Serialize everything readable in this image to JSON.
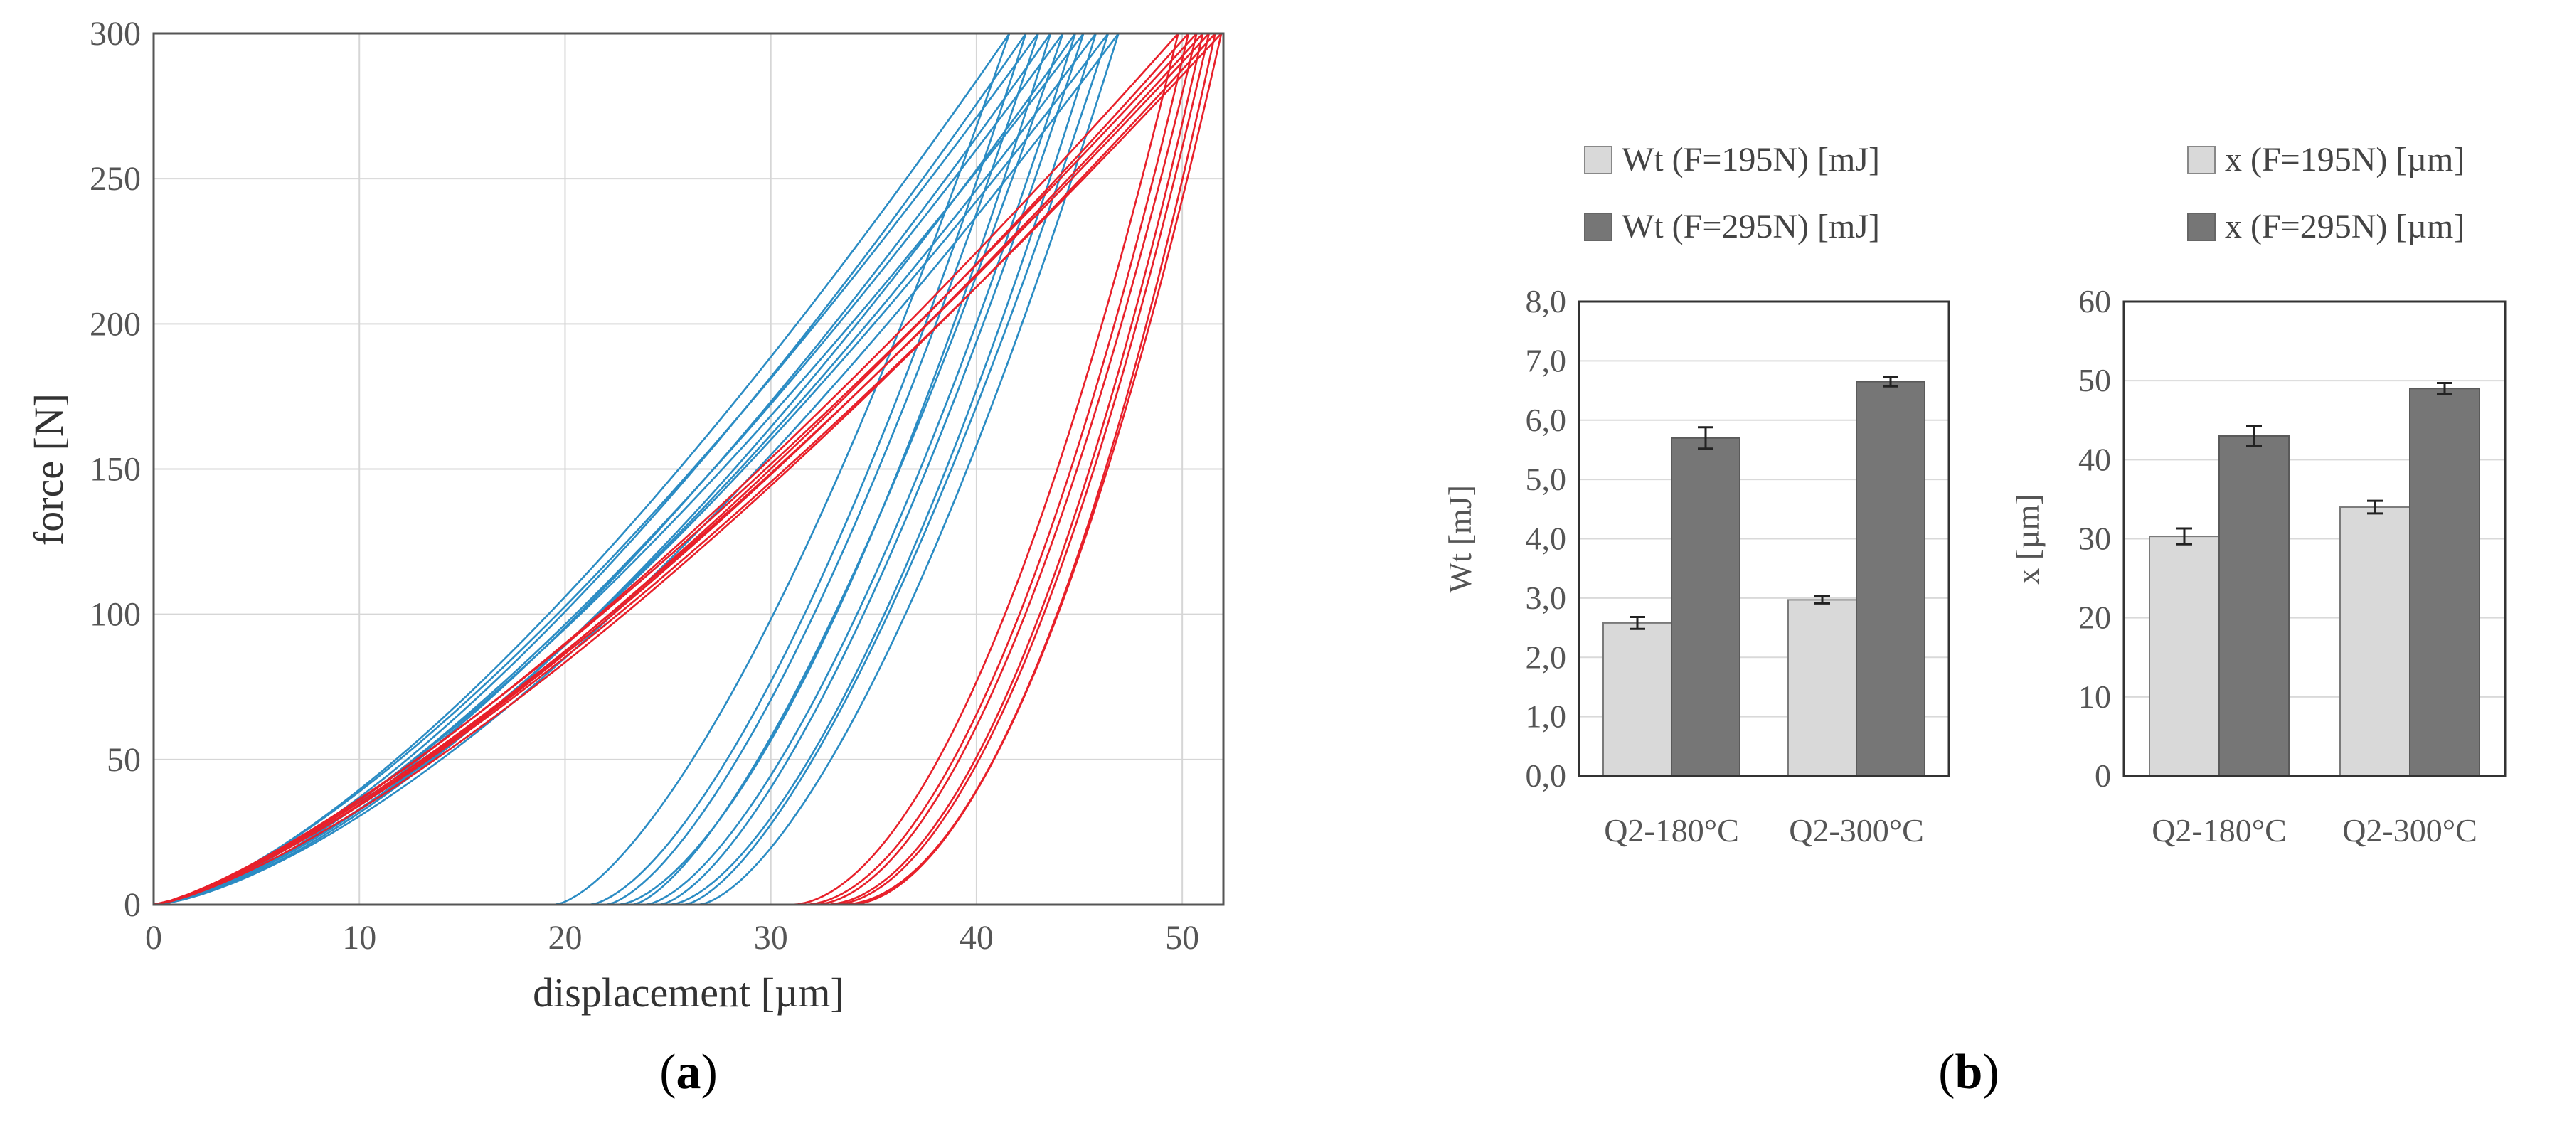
{
  "panel_labels": {
    "a": {
      "open": "(",
      "letter": "a",
      "close": ")"
    },
    "b": {
      "open": "(",
      "letter": "b",
      "close": ")"
    }
  },
  "chart_data": [
    {
      "type": "line",
      "panel": "a",
      "xlabel": "displacement [µm]",
      "ylabel": "force [N]",
      "xlim": [
        0,
        52
      ],
      "ylim": [
        0,
        300
      ],
      "xticks": [
        0,
        10,
        20,
        30,
        40,
        50
      ],
      "yticks": [
        0,
        50,
        100,
        150,
        200,
        250,
        300
      ],
      "grid": true,
      "colors": {
        "blue": "#2b8cc4",
        "red": "#e8202a"
      },
      "series": [
        {
          "color": "blue",
          "load_end_x": 41.6,
          "unload_start_x": 19.5,
          "load_exp": 1.42,
          "unload_exp": 1.5
        },
        {
          "color": "blue",
          "load_end_x": 42.4,
          "unload_start_x": 21.2,
          "load_exp": 1.45,
          "unload_exp": 1.55
        },
        {
          "color": "blue",
          "load_end_x": 43.0,
          "unload_start_x": 22.0,
          "load_exp": 1.4,
          "unload_exp": 1.5
        },
        {
          "color": "blue",
          "load_end_x": 43.6,
          "unload_start_x": 22.6,
          "load_exp": 1.47,
          "unload_exp": 1.6
        },
        {
          "color": "blue",
          "load_end_x": 44.2,
          "unload_start_x": 23.3,
          "load_exp": 1.43,
          "unload_exp": 1.45
        },
        {
          "color": "blue",
          "load_end_x": 44.8,
          "unload_start_x": 23.9,
          "load_exp": 1.5,
          "unload_exp": 1.55
        },
        {
          "color": "blue",
          "load_end_x": 45.2,
          "unload_start_x": 24.6,
          "load_exp": 1.41,
          "unload_exp": 1.5
        },
        {
          "color": "blue",
          "load_end_x": 45.8,
          "unload_start_x": 25.1,
          "load_exp": 1.46,
          "unload_exp": 1.6
        },
        {
          "color": "blue",
          "load_end_x": 46.4,
          "unload_start_x": 25.8,
          "load_exp": 1.44,
          "unload_exp": 1.5
        },
        {
          "color": "blue",
          "load_end_x": 46.9,
          "unload_start_x": 26.5,
          "load_exp": 1.48,
          "unload_exp": 1.55
        },
        {
          "color": "red",
          "load_end_x": 49.8,
          "unload_start_x": 31.0,
          "load_exp": 1.32,
          "unload_exp": 1.85
        },
        {
          "color": "red",
          "load_end_x": 50.3,
          "unload_start_x": 31.6,
          "load_exp": 1.34,
          "unload_exp": 1.9
        },
        {
          "color": "red",
          "load_end_x": 50.7,
          "unload_start_x": 32.1,
          "load_exp": 1.3,
          "unload_exp": 1.85
        },
        {
          "color": "red",
          "load_end_x": 51.0,
          "unload_start_x": 32.6,
          "load_exp": 1.33,
          "unload_exp": 1.95
        },
        {
          "color": "red",
          "load_end_x": 51.3,
          "unload_start_x": 33.0,
          "load_exp": 1.31,
          "unload_exp": 1.9
        },
        {
          "color": "red",
          "load_end_x": 51.6,
          "unload_start_x": 33.4,
          "load_exp": 1.35,
          "unload_exp": 2.0
        },
        {
          "color": "red",
          "load_end_x": 51.9,
          "unload_start_x": 33.8,
          "load_exp": 1.32,
          "unload_exp": 1.9
        }
      ]
    },
    {
      "type": "bar",
      "panel": "b-left",
      "categories": [
        "Q2-180°C",
        "Q2-300°C"
      ],
      "ylabel": "Wt [mJ]",
      "ylim": [
        0,
        8
      ],
      "yticks": [
        "0,0",
        "1,0",
        "2,0",
        "3,0",
        "4,0",
        "5,0",
        "6,0",
        "7,0",
        "8,0"
      ],
      "series": [
        {
          "name": "Wt (F=195N) [mJ]",
          "color": "#d9d9d9",
          "values": [
            2.58,
            2.97
          ],
          "errors": [
            0.1,
            0.06
          ]
        },
        {
          "name": "Wt (F=295N) [mJ]",
          "color": "#767676",
          "values": [
            5.7,
            6.65
          ],
          "errors": [
            0.18,
            0.08
          ]
        }
      ],
      "legend": "top"
    },
    {
      "type": "bar",
      "panel": "b-right",
      "categories": [
        "Q2-180°C",
        "Q2-300°C"
      ],
      "ylabel": "x [µm]",
      "ylim": [
        0,
        60
      ],
      "yticks": [
        "0",
        "10",
        "20",
        "30",
        "40",
        "50",
        "60"
      ],
      "series": [
        {
          "name": "x (F=195N) [µm]",
          "color": "#d9d9d9",
          "values": [
            30.3,
            34.0
          ],
          "errors": [
            1.0,
            0.8
          ]
        },
        {
          "name": "x (F=295N) [µm]",
          "color": "#767676",
          "values": [
            43.0,
            49.0
          ],
          "errors": [
            1.3,
            0.7
          ]
        }
      ],
      "legend": "top"
    }
  ]
}
